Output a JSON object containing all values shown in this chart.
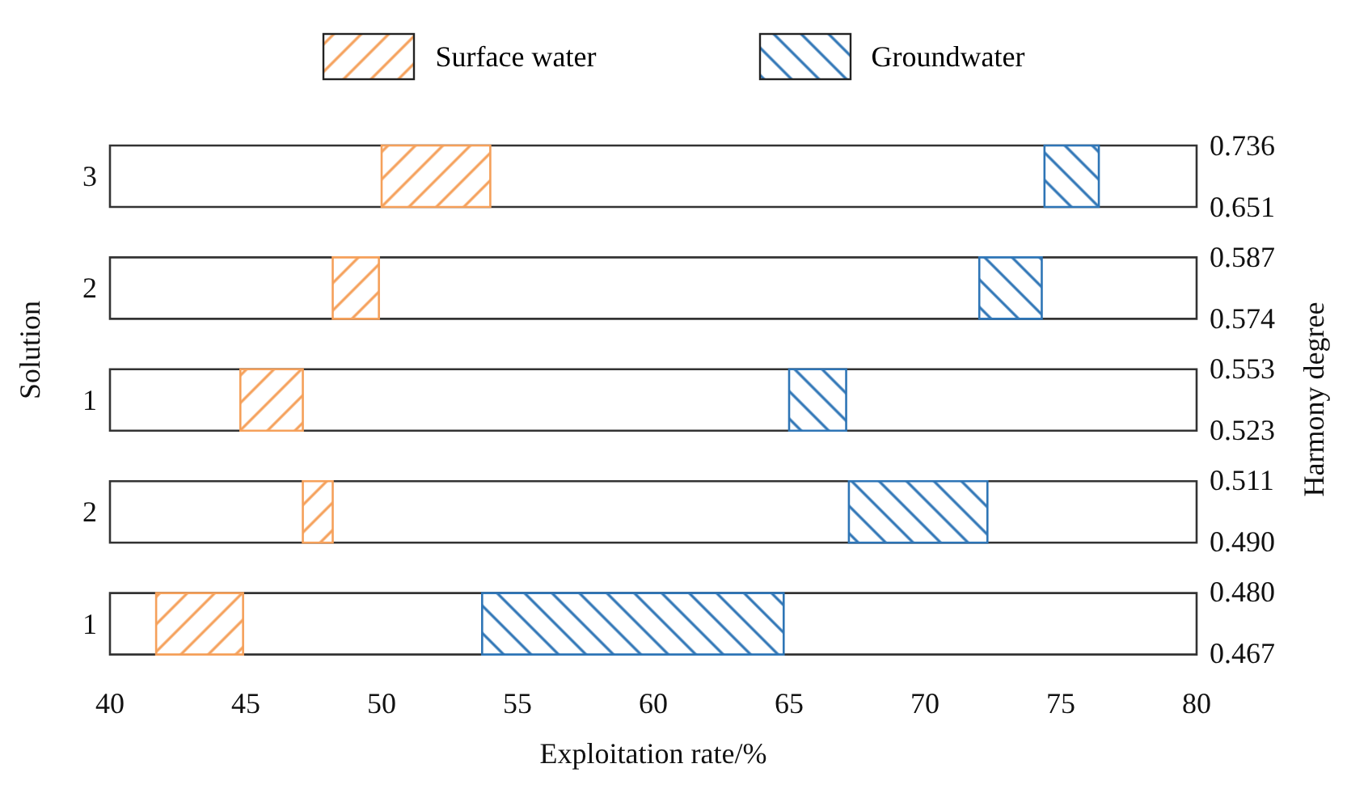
{
  "chart_data": {
    "type": "bar",
    "orientation": "horizontal",
    "xlabel": "Exploitation rate/%",
    "ylabel": "Solution",
    "y2label": "Harmony degree",
    "categories": [
      "3",
      "2",
      "1",
      "2",
      "1"
    ],
    "series": [
      {
        "name": "Surface water",
        "color": "#f5a05a",
        "base": [
          50.0,
          48.2,
          44.8,
          47.1,
          41.7
        ],
        "values": [
          4.0,
          1.7,
          2.3,
          1.1,
          3.2
        ]
      },
      {
        "name": "Groundwater",
        "color": "#2e75b6",
        "base": [
          74.4,
          72.0,
          65.0,
          67.2,
          53.7
        ],
        "values": [
          2.0,
          2.3,
          2.1,
          5.1,
          11.1
        ]
      }
    ],
    "xlim": [
      40,
      80
    ],
    "xticks": [
      40,
      45,
      50,
      55,
      60,
      65,
      70,
      75,
      80
    ],
    "annotations": [
      "0.736",
      "0.651",
      "0.587",
      "0.574",
      "0.553",
      "0.523",
      "0.511",
      "0.490",
      "0.480",
      "0.467"
    ],
    "legend": "top"
  }
}
